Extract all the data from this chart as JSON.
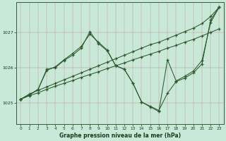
{
  "title": "Graphe pression niveau de la mer (hPa)",
  "bg_color": "#c8e8d8",
  "grid_color_major": "#ddaaaa",
  "grid_color_minor": "#ddcccc",
  "line_color": "#2d5a2d",
  "ylim": [
    1024.4,
    1027.85
  ],
  "xlim": [
    -0.5,
    23.5
  ],
  "yticks": [
    1025,
    1026,
    1027
  ],
  "xticks": [
    0,
    1,
    2,
    3,
    4,
    5,
    6,
    7,
    8,
    9,
    10,
    11,
    12,
    13,
    14,
    15,
    16,
    17,
    18,
    19,
    20,
    21,
    22,
    23
  ],
  "line1_x": [
    0,
    1,
    2,
    3,
    4,
    5,
    6,
    7,
    8,
    9,
    10,
    11,
    12,
    13,
    14,
    15,
    16,
    17,
    18,
    19,
    20,
    21,
    22,
    23
  ],
  "line1_y": [
    1025.1,
    1025.25,
    1025.35,
    1025.45,
    1025.55,
    1025.65,
    1025.75,
    1025.85,
    1025.95,
    1026.05,
    1026.15,
    1026.25,
    1026.35,
    1026.45,
    1026.55,
    1026.65,
    1026.72,
    1026.82,
    1026.92,
    1027.02,
    1027.12,
    1027.25,
    1027.45,
    1027.72
  ],
  "line2_x": [
    0,
    1,
    2,
    3,
    4,
    5,
    6,
    7,
    8,
    9,
    10,
    11,
    12,
    13,
    14,
    15,
    16,
    17,
    18,
    19,
    20,
    21,
    22,
    23
  ],
  "line2_y": [
    1025.1,
    1025.2,
    1025.28,
    1025.38,
    1025.47,
    1025.55,
    1025.63,
    1025.72,
    1025.8,
    1025.88,
    1025.97,
    1026.05,
    1026.13,
    1026.22,
    1026.3,
    1026.38,
    1026.46,
    1026.55,
    1026.63,
    1026.72,
    1026.8,
    1026.9,
    1027.0,
    1027.1
  ],
  "line3_x": [
    0,
    1,
    2,
    3,
    4,
    5,
    6,
    7,
    8,
    9,
    10,
    11,
    12,
    13,
    14,
    15,
    16,
    17,
    18,
    19,
    20,
    21,
    22,
    23
  ],
  "line3_y": [
    1025.1,
    1025.22,
    1025.38,
    1025.95,
    1026.0,
    1026.2,
    1026.35,
    1026.55,
    1027.02,
    1026.68,
    1026.48,
    1026.05,
    1025.95,
    1025.55,
    1025.02,
    1024.9,
    1024.78,
    1025.27,
    1025.6,
    1025.7,
    1025.85,
    1026.1,
    1027.35,
    1027.72
  ],
  "line4_x": [
    0,
    1,
    2,
    3,
    4,
    5,
    6,
    7,
    8,
    9,
    10,
    11,
    12,
    13,
    14,
    15,
    16,
    17,
    18,
    19,
    20,
    21,
    22,
    23
  ],
  "line4_y": [
    1025.1,
    1025.22,
    1025.38,
    1025.92,
    1026.02,
    1026.22,
    1026.4,
    1026.6,
    1026.95,
    1026.72,
    1026.5,
    1026.05,
    1025.95,
    1025.55,
    1025.02,
    1024.88,
    1024.75,
    1026.22,
    1025.62,
    1025.75,
    1025.9,
    1026.2,
    1027.28,
    1027.72
  ]
}
